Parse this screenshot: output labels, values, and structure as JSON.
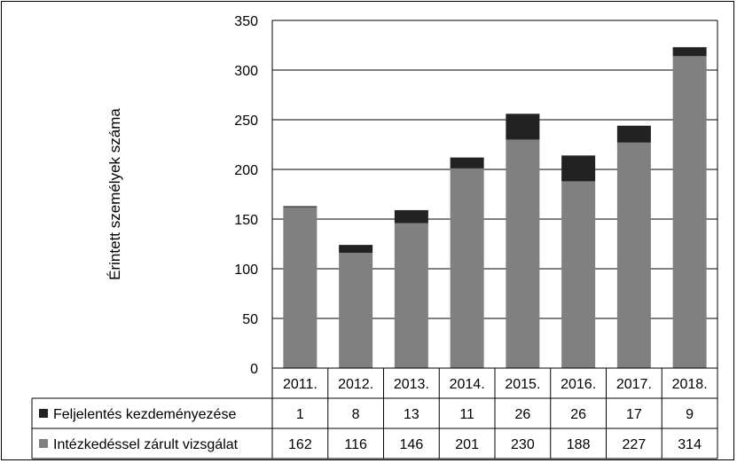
{
  "chart_data": {
    "type": "bar",
    "stacked": true,
    "categories": [
      "2011.",
      "2012.",
      "2013.",
      "2014.",
      "2015.",
      "2016.",
      "2017.",
      "2018."
    ],
    "series": [
      {
        "name": "Intézkedéssel zárult vizsgálat",
        "color": "#808080",
        "values": [
          162,
          116,
          146,
          201,
          230,
          188,
          227,
          314
        ]
      },
      {
        "name": "Feljelentés kezdeményezése",
        "color": "#222222",
        "values": [
          1,
          8,
          13,
          11,
          26,
          26,
          17,
          9
        ]
      }
    ],
    "ylabel": "Érintett személyek száma",
    "ylim": [
      0,
      350
    ],
    "yticks": [
      0,
      50,
      100,
      150,
      200,
      250,
      300,
      350
    ],
    "grid": true,
    "legend": "data-table"
  }
}
